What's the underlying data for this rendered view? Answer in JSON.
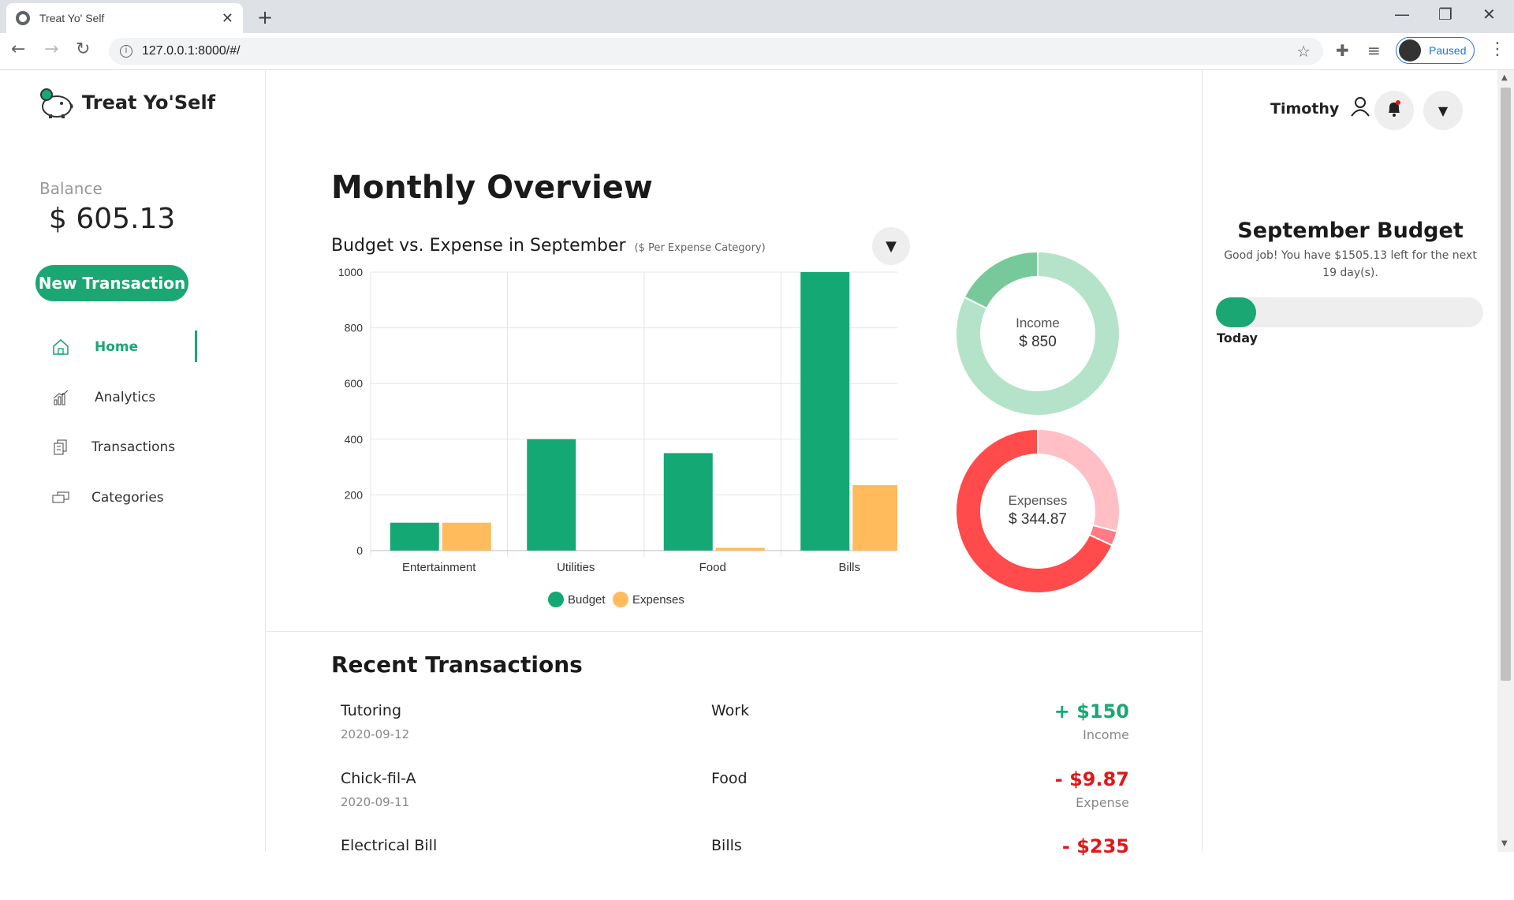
{
  "browser": {
    "tab_title": "Treat Yo' Self",
    "url": "127.0.0.1:8000/#/",
    "profile_label": "Paused"
  },
  "app": {
    "name": "Treat Yo'Self",
    "balance_label": "Balance",
    "balance_value": "$ 605.13",
    "new_transaction_label": "New Transaction",
    "nav": [
      {
        "label": "Home",
        "icon": "home-icon",
        "active": true
      },
      {
        "label": "Analytics",
        "icon": "analytics-icon",
        "active": false
      },
      {
        "label": "Transactions",
        "icon": "transactions-icon",
        "active": false
      },
      {
        "label": "Categories",
        "icon": "categories-icon",
        "active": false
      }
    ],
    "accent_color": "#1aa774"
  },
  "main": {
    "title": "Monthly Overview",
    "chart_title": "Budget vs. Expense in September",
    "chart_subtitle": "($ Per Expense Category)",
    "income_label": "Income",
    "income_value": "$ 850",
    "expenses_label": "Expenses",
    "expenses_value": "$ 344.87",
    "recent_title": "Recent Transactions",
    "transactions": [
      {
        "name": "Tutoring",
        "date": "2020-09-12",
        "category": "Work",
        "amount": "+ $150",
        "type": "Income"
      },
      {
        "name": "Chick-fil-A",
        "date": "2020-09-11",
        "category": "Food",
        "amount": "- $9.87",
        "type": "Expense"
      },
      {
        "name": "Electrical Bill",
        "date": "",
        "category": "Bills",
        "amount": "- $235",
        "type": "Expense"
      }
    ]
  },
  "right": {
    "user_name": "Timothy",
    "budget_title": "September Budget",
    "budget_message": "Good job! You have $1505.13 left for the next 19 day(s).",
    "progress_fraction": 0.15,
    "progress_label": "Today"
  },
  "chart_data": [
    {
      "type": "bar",
      "title": "Budget vs. Expense in September",
      "subtitle": "($ Per Expense Category)",
      "categories": [
        "Entertainment",
        "Utilities",
        "Food",
        "Bills"
      ],
      "series": [
        {
          "name": "Budget",
          "color": "#14a874",
          "values": [
            100,
            400,
            350,
            1000
          ]
        },
        {
          "name": "Expenses",
          "color": "#ffbb5c",
          "values": [
            100,
            0,
            10,
            235
          ]
        }
      ],
      "ylim": [
        0,
        1000
      ],
      "yticks": [
        0,
        200,
        400,
        600,
        800,
        1000
      ],
      "grid": true,
      "legend": "bottom"
    },
    {
      "type": "pie",
      "label": "Income",
      "center_text": "$ 850",
      "slices": [
        {
          "value": 700,
          "color": "#b4e3c9"
        },
        {
          "value": 150,
          "color": "#77c99b"
        }
      ]
    },
    {
      "type": "pie",
      "label": "Expenses",
      "center_text": "$ 344.87",
      "slices": [
        {
          "value": 100,
          "color": "#ffbfc4"
        },
        {
          "value": 9.87,
          "color": "#ff7b85"
        },
        {
          "value": 235,
          "color": "#ff4b4b"
        }
      ]
    }
  ]
}
